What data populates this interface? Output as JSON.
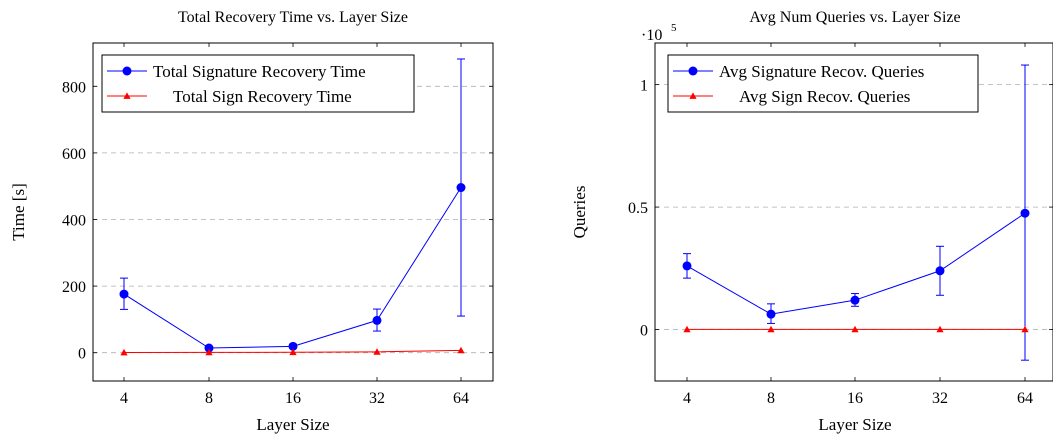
{
  "chart_data": [
    {
      "type": "line",
      "title": "Total Recovery Time vs. Layer Size",
      "xlabel": "Layer Size",
      "ylabel": "Time [s]",
      "categories": [
        "4",
        "8",
        "16",
        "32",
        "64"
      ],
      "ylim": [
        -85,
        930
      ],
      "yticks": [
        0,
        200,
        400,
        600,
        800
      ],
      "y_tick_labels": [
        "0",
        "200",
        "400",
        "600",
        "800"
      ],
      "grid": "horizontal dashed",
      "legend_position": "top-left",
      "series": [
        {
          "name": "Total Signature Recovery Time",
          "color": "#0000ff",
          "marker": "circle",
          "values": [
            176,
            14,
            19,
            97,
            496
          ],
          "error_low": [
            130,
            10,
            14,
            65,
            110
          ],
          "error_high": [
            224,
            18,
            24,
            131,
            882
          ]
        },
        {
          "name": "Total Sign Recovery Time",
          "color": "#ff0000",
          "marker": "triangle",
          "values": [
            0.5,
            0.8,
            1.2,
            2.5,
            7
          ]
        }
      ]
    },
    {
      "type": "line",
      "title": "Avg Num Queries vs. Layer Size",
      "xlabel": "Layer Size",
      "ylabel": "Queries",
      "y_multiplier_label": "·10",
      "y_multiplier_exponent": "5",
      "categories": [
        "4",
        "8",
        "16",
        "32",
        "64"
      ],
      "ylim": [
        -21000,
        117000
      ],
      "yticks": [
        0,
        50000,
        100000
      ],
      "y_tick_labels": [
        "0",
        "0.5",
        "1"
      ],
      "grid": "horizontal dashed",
      "legend_position": "top-left",
      "series": [
        {
          "name": "Avg Signature Recov. Queries",
          "color": "#0000ff",
          "marker": "circle",
          "values": [
            26000,
            6300,
            12000,
            24000,
            47500
          ],
          "error_low": [
            21000,
            2500,
            9500,
            14000,
            -12500
          ],
          "error_high": [
            31000,
            10500,
            14700,
            34000,
            108000
          ]
        },
        {
          "name": "Avg Sign Recov. Queries",
          "color": "#ff0000",
          "marker": "triangle",
          "values": [
            100,
            100,
            100,
            100,
            100
          ]
        }
      ]
    }
  ]
}
